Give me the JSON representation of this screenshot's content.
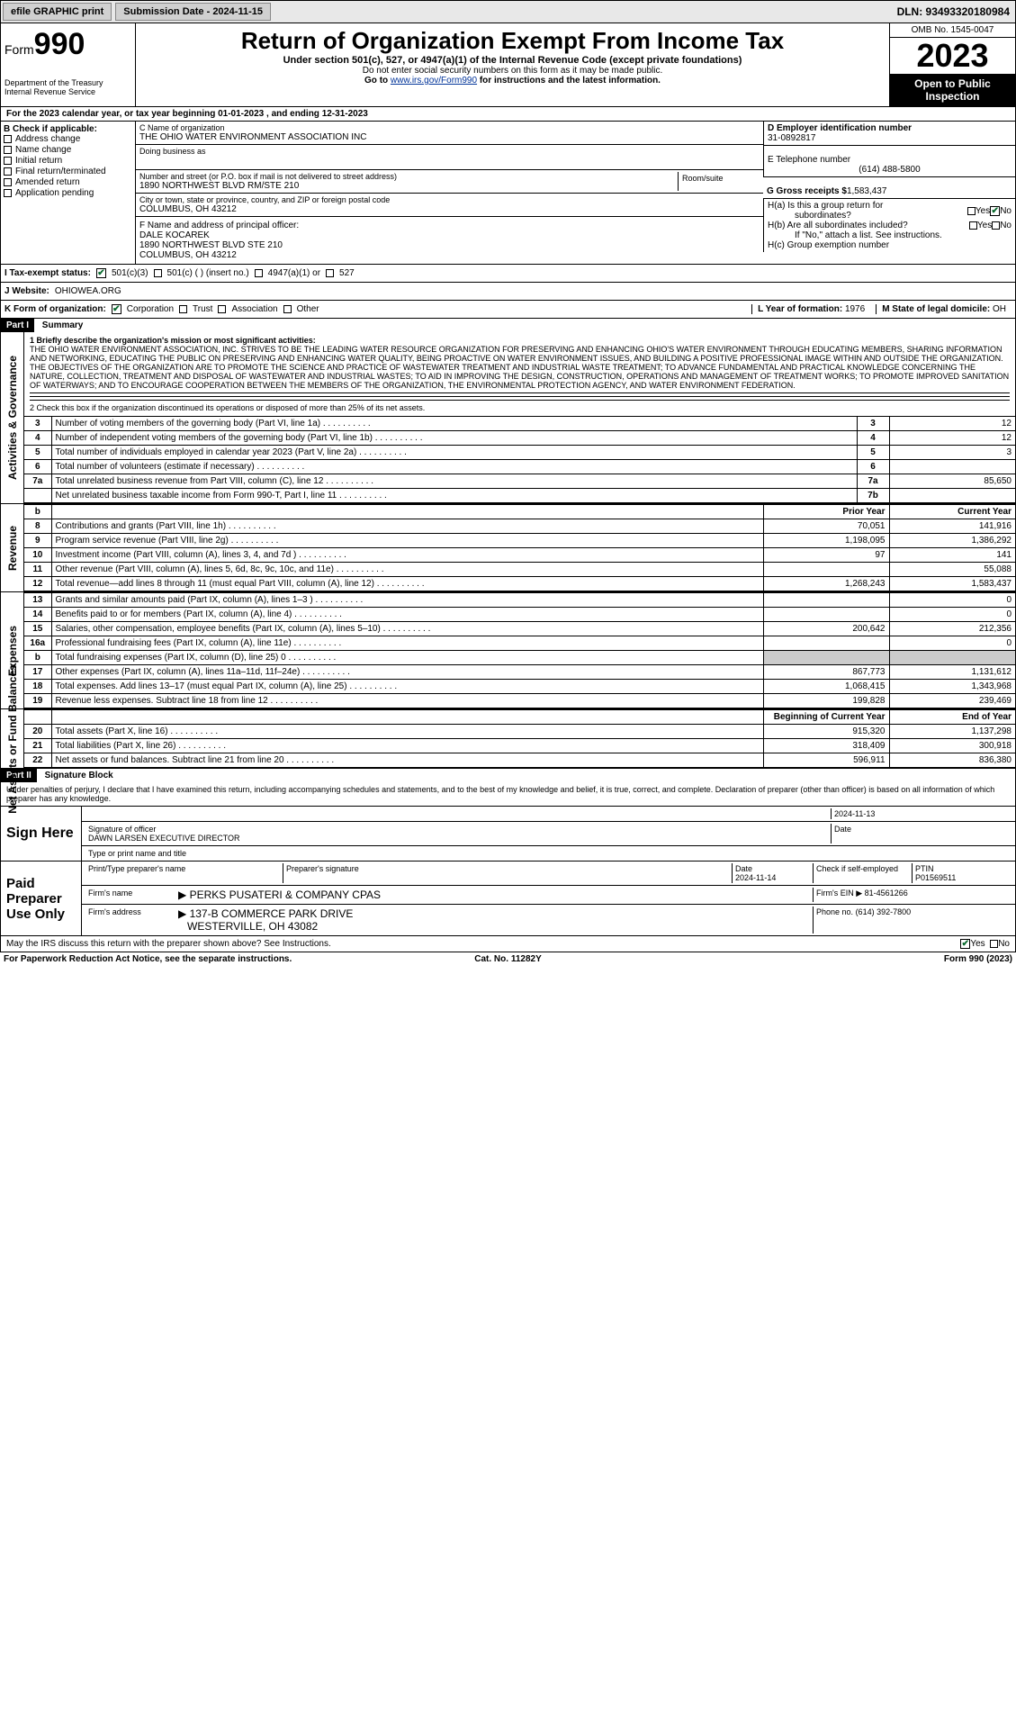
{
  "topbar": {
    "efile_label": "efile GRAPHIC print",
    "submission_label": "Submission Date - 2024-11-15",
    "dln_label": "DLN: 93493320180984"
  },
  "header": {
    "form_label": "Form",
    "form_number": "990",
    "department": "Department of the Treasury",
    "irs": "Internal Revenue Service",
    "title": "Return of Organization Exempt From Income Tax",
    "subtitle": "Under section 501(c), 527, or 4947(a)(1) of the Internal Revenue Code (except private foundations)",
    "note1": "Do not enter social security numbers on this form as it may be made public.",
    "note2_prefix": "Go to ",
    "note2_link": "www.irs.gov/Form990",
    "note2_suffix": " for instructions and the latest information.",
    "omb": "OMB No. 1545-0047",
    "year": "2023",
    "inspection1": "Open to Public",
    "inspection2": "Inspection"
  },
  "line_a": "For the 2023 calendar year, or tax year beginning 01-01-2023   , and ending 12-31-2023",
  "col_b": {
    "header": "B Check if applicable:",
    "items": [
      "Address change",
      "Name change",
      "Initial return",
      "Final return/terminated",
      "Amended return",
      "Application pending"
    ]
  },
  "col_c": {
    "name_label": "C Name of organization",
    "name": "THE OHIO WATER ENVIRONMENT ASSOCIATION INC",
    "dba_label": "Doing business as",
    "addr_label": "Number and street (or P.O. box if mail is not delivered to street address)",
    "addr": "1890 NORTHWEST BLVD RM/STE 210",
    "room_label": "Room/suite",
    "city_label": "City or town, state or province, country, and ZIP or foreign postal code",
    "city": "COLUMBUS, OH  43212",
    "officer_label": "F  Name and address of principal officer:",
    "officer_name": "DALE KOCAREK",
    "officer_addr1": "1890 NORTHWEST BLVD STE 210",
    "officer_addr2": "COLUMBUS, OH  43212"
  },
  "col_d": {
    "ein_label": "D Employer identification number",
    "ein": "31-0892817",
    "phone_label": "E Telephone number",
    "phone": "(614) 488-5800",
    "gross_label": "G Gross receipts $",
    "gross": "1,583,437",
    "ha_label": "H(a)  Is this a group return for",
    "ha_sub": "subordinates?",
    "hb_label": "H(b)  Are all subordinates included?",
    "hb_note": "If \"No,\" attach a list. See instructions.",
    "hc_label": "H(c)  Group exemption number",
    "yes": "Yes",
    "no": "No"
  },
  "line_i": {
    "label": "I   Tax-exempt status:",
    "opt1": "501(c)(3)",
    "opt2": "501(c) (  ) (insert no.)",
    "opt3": "4947(a)(1) or",
    "opt4": "527"
  },
  "line_j": {
    "label": "J   Website:",
    "value": "OHIOWEA.ORG"
  },
  "line_k": {
    "label": "K Form of organization:",
    "opts": [
      "Corporation",
      "Trust",
      "Association",
      "Other"
    ],
    "l_label": "L Year of formation:",
    "l_val": "1976",
    "m_label": "M State of legal domicile:",
    "m_val": "OH"
  },
  "part1": {
    "label": "Part I",
    "title": "Summary",
    "side_ag": "Activities & Governance",
    "side_rev": "Revenue",
    "side_exp": "Expenses",
    "side_net": "Net Assets or Fund Balances",
    "q1_label": "1  Briefly describe the organization's mission or most significant activities:",
    "mission": "THE OHIO WATER ENVIRONMENT ASSOCIATION, INC. STRIVES TO BE THE LEADING WATER RESOURCE ORGANIZATION FOR PRESERVING AND ENHANCING OHIO'S WATER ENVIRONMENT THROUGH EDUCATING MEMBERS, SHARING INFORMATION AND NETWORKING, EDUCATING THE PUBLIC ON PRESERVING AND ENHANCING WATER QUALITY, BEING PROACTIVE ON WATER ENVIRONMENT ISSUES, AND BUILDING A POSITIVE PROFESSIONAL IMAGE WITHIN AND OUTSIDE THE ORGANIZATION. THE OBJECTIVES OF THE ORGANIZATION ARE TO PROMOTE THE SCIENCE AND PRACTICE OF WASTEWATER TREATMENT AND INDUSTRIAL WASTE TREATMENT; TO ADVANCE FUNDAMENTAL AND PRACTICAL KNOWLEDGE CONCERNING THE NATURE, COLLECTION, TREATMENT AND DISPOSAL OF WASTEWATER AND INDUSTRIAL WASTES; TO AID IN IMPROVING THE DESIGN, CONSTRUCTION, OPERATIONS AND MANAGEMENT OF TREATMENT WORKS; TO PROMOTE IMPROVED SANITATION OF WATERWAYS; AND TO ENCOURAGE COOPERATION BETWEEN THE MEMBERS OF THE ORGANIZATION, THE ENVIRONMENTAL PROTECTION AGENCY, AND WATER ENVIRONMENT FEDERATION.",
    "q2": "2   Check this box      if the organization discontinued its operations or disposed of more than 25% of its net assets.",
    "rows_simple": [
      {
        "n": "3",
        "desc": "Number of voting members of the governing body (Part VI, line 1a)",
        "key": "3",
        "val": "12"
      },
      {
        "n": "4",
        "desc": "Number of independent voting members of the governing body (Part VI, line 1b)",
        "key": "4",
        "val": "12"
      },
      {
        "n": "5",
        "desc": "Total number of individuals employed in calendar year 2023 (Part V, line 2a)",
        "key": "5",
        "val": "3"
      },
      {
        "n": "6",
        "desc": "Total number of volunteers (estimate if necessary)",
        "key": "6",
        "val": ""
      },
      {
        "n": "7a",
        "desc": "Total unrelated business revenue from Part VIII, column (C), line 12",
        "key": "7a",
        "val": "85,650"
      },
      {
        "n": " ",
        "desc": "Net unrelated business taxable income from Form 990-T, Part I, line 11",
        "key": "7b",
        "val": ""
      }
    ],
    "hdr_b": "b",
    "hdr_prior": "Prior Year",
    "hdr_current": "Current Year",
    "rows_rev": [
      {
        "n": "8",
        "desc": "Contributions and grants (Part VIII, line 1h)",
        "p": "70,051",
        "c": "141,916"
      },
      {
        "n": "9",
        "desc": "Program service revenue (Part VIII, line 2g)",
        "p": "1,198,095",
        "c": "1,386,292"
      },
      {
        "n": "10",
        "desc": "Investment income (Part VIII, column (A), lines 3, 4, and 7d )",
        "p": "97",
        "c": "141"
      },
      {
        "n": "11",
        "desc": "Other revenue (Part VIII, column (A), lines 5, 6d, 8c, 9c, 10c, and 11e)",
        "p": "",
        "c": "55,088"
      },
      {
        "n": "12",
        "desc": "Total revenue—add lines 8 through 11 (must equal Part VIII, column (A), line 12)",
        "p": "1,268,243",
        "c": "1,583,437"
      }
    ],
    "rows_exp": [
      {
        "n": "13",
        "desc": "Grants and similar amounts paid (Part IX, column (A), lines 1–3 )",
        "p": "",
        "c": "0"
      },
      {
        "n": "14",
        "desc": "Benefits paid to or for members (Part IX, column (A), line 4)",
        "p": "",
        "c": "0"
      },
      {
        "n": "15",
        "desc": "Salaries, other compensation, employee benefits (Part IX, column (A), lines 5–10)",
        "p": "200,642",
        "c": "212,356"
      },
      {
        "n": "16a",
        "desc": "Professional fundraising fees (Part IX, column (A), line 11e)",
        "p": "",
        "c": "0"
      },
      {
        "n": "b",
        "desc": "Total fundraising expenses (Part IX, column (D), line 25) 0",
        "p": "GRAY",
        "c": "GRAY"
      },
      {
        "n": "17",
        "desc": "Other expenses (Part IX, column (A), lines 11a–11d, 11f–24e)",
        "p": "867,773",
        "c": "1,131,612"
      },
      {
        "n": "18",
        "desc": "Total expenses. Add lines 13–17 (must equal Part IX, column (A), line 25)",
        "p": "1,068,415",
        "c": "1,343,968"
      },
      {
        "n": "19",
        "desc": "Revenue less expenses. Subtract line 18 from line 12",
        "p": "199,828",
        "c": "239,469"
      }
    ],
    "hdr_begin": "Beginning of Current Year",
    "hdr_end": "End of Year",
    "rows_net": [
      {
        "n": "20",
        "desc": "Total assets (Part X, line 16)",
        "p": "915,320",
        "c": "1,137,298"
      },
      {
        "n": "21",
        "desc": "Total liabilities (Part X, line 26)",
        "p": "318,409",
        "c": "300,918"
      },
      {
        "n": "22",
        "desc": "Net assets or fund balances. Subtract line 21 from line 20",
        "p": "596,911",
        "c": "836,380"
      }
    ]
  },
  "part2": {
    "label": "Part II",
    "title": "Signature Block",
    "penalties": "Under penalties of perjury, I declare that I have examined this return, including accompanying schedules and statements, and to the best of my knowledge and belief, it is true, correct, and complete. Declaration of preparer (other than officer) is based on all information of which preparer has any knowledge.",
    "sign_here": "Sign Here",
    "sig_officer_label": "Signature of officer",
    "sig_officer": "DAWN LARSEN  EXECUTIVE DIRECTOR",
    "sig_type_label": "Type or print name and title",
    "date_label": "Date",
    "sig_date": "2024-11-13",
    "paid_prep": "Paid Preparer Use Only",
    "prep_name_label": "Print/Type preparer's name",
    "prep_sig_label": "Preparer's signature",
    "prep_date_label": "Date",
    "prep_date": "2024-11-14",
    "check_self_label": "Check      if self-employed",
    "ptin_label": "PTIN",
    "ptin": "P01569511",
    "firm_name_label": "Firm's name",
    "firm_name": "PERKS PUSATERI & COMPANY CPAS",
    "firm_ein_label": "Firm's EIN",
    "firm_ein": "81-4561266",
    "firm_addr_label": "Firm's address",
    "firm_addr1": "137-B COMMERCE PARK DRIVE",
    "firm_addr2": "WESTERVILLE, OH  43082",
    "firm_phone_label": "Phone no.",
    "firm_phone": "(614) 392-7800",
    "discuss": "May the IRS discuss this return with the preparer shown above? See Instructions."
  },
  "footer": {
    "paperwork": "For Paperwork Reduction Act Notice, see the separate instructions.",
    "catno": "Cat. No. 11282Y",
    "formref": "Form 990 (2023)"
  }
}
